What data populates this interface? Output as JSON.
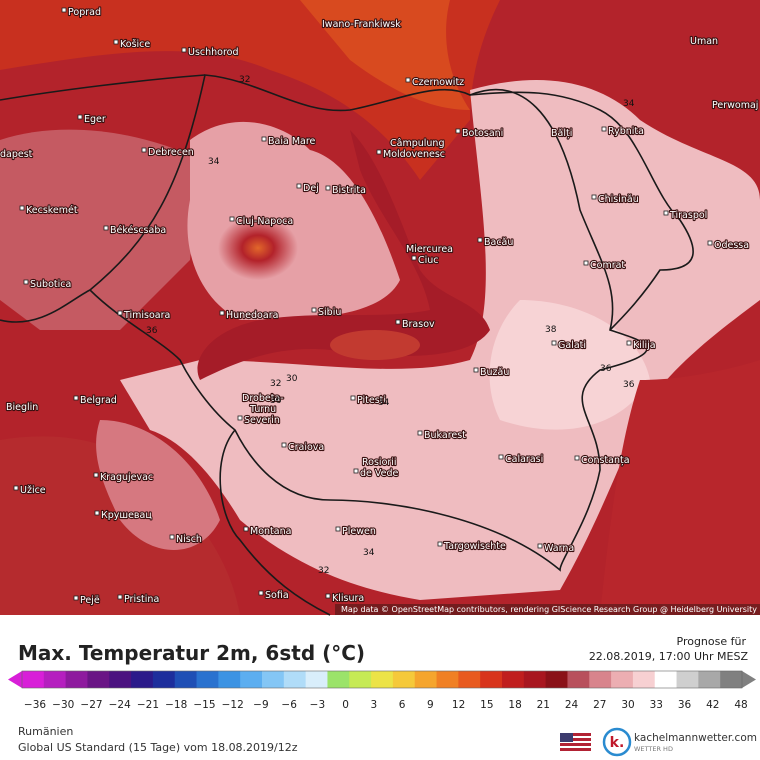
{
  "map": {
    "cities": [
      "Poprad",
      "Košice",
      "Uschhorod",
      "Iwano-Frankiwsk",
      "Uman",
      "Czernowitz",
      "Perwomaj",
      "Eger",
      "Baia Mare",
      "Câmpulung",
      "Moldovenesc",
      "Botosani",
      "Bălți",
      "Rybnita",
      "dapest",
      "Debrecen",
      "Dej",
      "Bistrita",
      "Chisinău",
      "Kecskemét",
      "Tiraspol",
      "Békéscsaba",
      "Cluj-Napoca",
      "Miercurea",
      "Ciuc",
      "Bacău",
      "Odessa",
      "Comrat",
      "Subotica",
      "Timisoara",
      "Hunedoara",
      "Sibiu",
      "Brasov",
      "Galati",
      "Kilija",
      "Buzău",
      "Bieglin",
      "Belgrad",
      "Drobeta-",
      "Turnu",
      "Severin",
      "Pitesti",
      "Craiova",
      "Bukarest",
      "Rosiorii",
      "de Vede",
      "Calarasi",
      "Constanța",
      "Kragujevac",
      "Užice",
      "Крушевац",
      "Nisch",
      "Montana",
      "Plewen",
      "Targowischte",
      "Warna",
      "Pejë",
      "Pristina",
      "Sofia",
      "Klisura"
    ],
    "contour_labels": [
      "32",
      "34",
      "34",
      "36",
      "38",
      "36",
      "32",
      "30",
      "36",
      "34",
      "34",
      "32",
      "36"
    ],
    "attribution": "Map data © OpenStreetMap contributors, rendering GIScience Research Group @ Heidelberg University"
  },
  "legend": {
    "title": "Max. Temperatur 2m, 6std (°C)",
    "forecast_label": "Prognose für",
    "forecast_time": "22.08.2019, 17:00 Uhr MESZ",
    "ticks": [
      "−36",
      "−30",
      "−27",
      "−24",
      "−21",
      "−18",
      "−15",
      "−12",
      "−9",
      "−6",
      "−3",
      "0",
      "3",
      "6",
      "9",
      "12",
      "15",
      "18",
      "21",
      "24",
      "27",
      "30",
      "33",
      "36",
      "42",
      "48"
    ],
    "colors": [
      "#d81fd8",
      "#b51fbf",
      "#8e1a9e",
      "#6a1585",
      "#4b1280",
      "#2b1a8a",
      "#1d2e9c",
      "#1f4fb5",
      "#2a72cf",
      "#3c93e3",
      "#5caef0",
      "#84c6f5",
      "#b0dcf8",
      "#d9eefb",
      "#9be36a",
      "#c6ea55",
      "#ece347",
      "#f5c93a",
      "#f5a52d",
      "#f08024",
      "#e85a1f",
      "#d8341c",
      "#c01e1e",
      "#a8161f",
      "#8a1118",
      "#b8505c",
      "#d8848c",
      "#ecaeb2",
      "#f7d0d2",
      "#ffffff",
      "#cfcfcf",
      "#a8a8a8",
      "#808080"
    ]
  },
  "footer": {
    "region": "Rumänien",
    "model": "Global US Standard (15 Tage) vom 18.08.2019/12z",
    "brand": "kachelmannwetter.com",
    "brand_sub": "WETTER HD"
  }
}
